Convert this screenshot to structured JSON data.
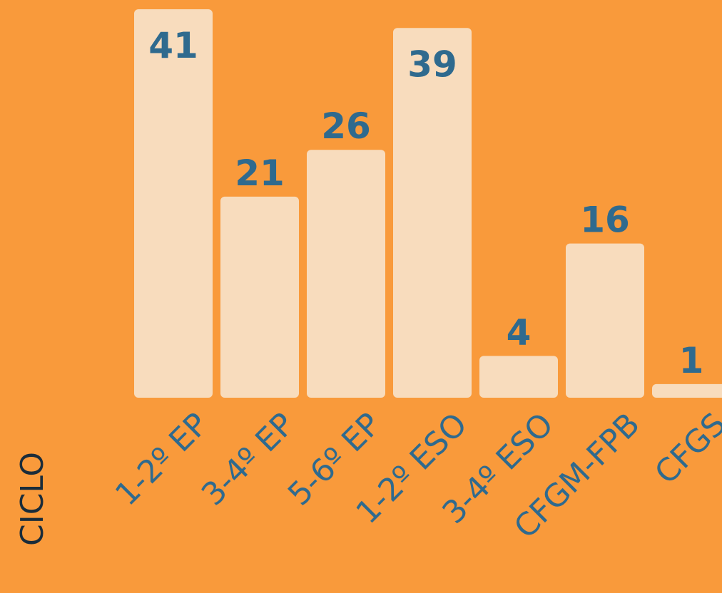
{
  "colors": {
    "background": "#F99A3B",
    "bar": "#F8DCBD",
    "label": "#2F6A8E",
    "axis_label": "#1A2C3A"
  },
  "chart_data": {
    "type": "bar",
    "categories": [
      "1-2º EP",
      "3-4º EP",
      "5-6º EP",
      "1-2º ESO",
      "3-4º ESO",
      "CFGM-FPB",
      "CFGS"
    ],
    "values": [
      41,
      21,
      26,
      39,
      4,
      16,
      1
    ],
    "xlabel": "CICLO",
    "ylabel": "",
    "ylim": [
      0,
      41
    ],
    "grid": false,
    "legend": "none"
  }
}
